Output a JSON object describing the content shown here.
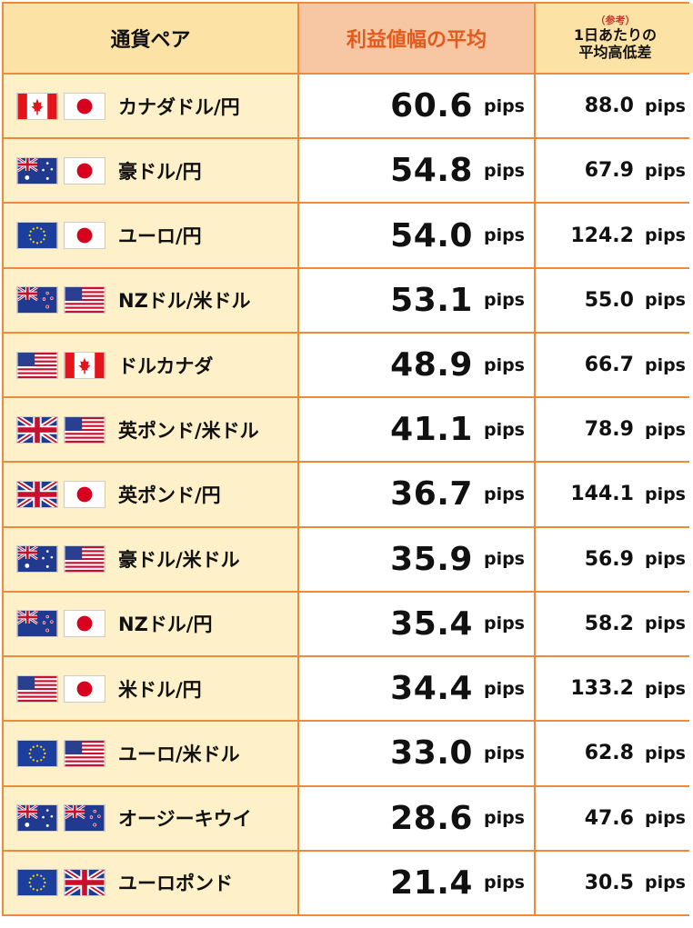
{
  "header": {
    "pair": "通貨ペア",
    "average": "利益値幅の平均",
    "ref_note": "（参考）",
    "ref_line1": "1日あたりの",
    "ref_line2": "平均高低差"
  },
  "unit": "pips",
  "rows": [
    {
      "name": "カナダドル/円",
      "flags": [
        "ca",
        "jp"
      ],
      "average": "60.6",
      "daily": "88.0"
    },
    {
      "name": "豪ドル/円",
      "flags": [
        "au",
        "jp"
      ],
      "average": "54.8",
      "daily": "67.9"
    },
    {
      "name": "ユーロ/円",
      "flags": [
        "eu",
        "jp"
      ],
      "average": "54.0",
      "daily": "124.2"
    },
    {
      "name": "NZドル/米ドル",
      "flags": [
        "nz",
        "us"
      ],
      "average": "53.1",
      "daily": "55.0"
    },
    {
      "name": "ドルカナダ",
      "flags": [
        "us",
        "ca"
      ],
      "average": "48.9",
      "daily": "66.7"
    },
    {
      "name": "英ポンド/米ドル",
      "flags": [
        "gb",
        "us"
      ],
      "average": "41.1",
      "daily": "78.9"
    },
    {
      "name": "英ポンド/円",
      "flags": [
        "gb",
        "jp"
      ],
      "average": "36.7",
      "daily": "144.1"
    },
    {
      "name": "豪ドル/米ドル",
      "flags": [
        "au",
        "us"
      ],
      "average": "35.9",
      "daily": "56.9"
    },
    {
      "name": "NZドル/円",
      "flags": [
        "nz",
        "jp"
      ],
      "average": "35.4",
      "daily": "58.2"
    },
    {
      "name": "米ドル/円",
      "flags": [
        "us",
        "jp"
      ],
      "average": "34.4",
      "daily": "133.2"
    },
    {
      "name": "ユーロ/米ドル",
      "flags": [
        "eu",
        "us"
      ],
      "average": "33.0",
      "daily": "62.8"
    },
    {
      "name": "オージーキウイ",
      "flags": [
        "au",
        "nz"
      ],
      "average": "28.6",
      "daily": "47.6"
    },
    {
      "name": "ユーロポンド",
      "flags": [
        "eu",
        "gb"
      ],
      "average": "21.4",
      "daily": "30.5"
    }
  ],
  "colors": {
    "border": "#ef8a3a",
    "pair_bg": "#fef0c8",
    "header_bg": "#fde2a6",
    "avg_header_bg": "#f7c7a3",
    "avg_header_text": "#e15b1f"
  }
}
